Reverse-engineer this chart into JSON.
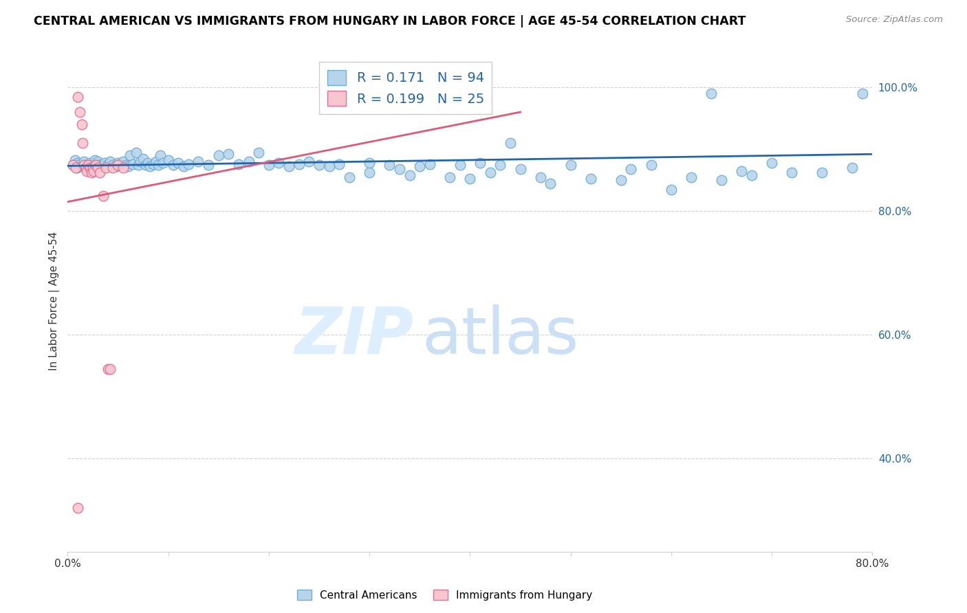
{
  "title": "CENTRAL AMERICAN VS IMMIGRANTS FROM HUNGARY IN LABOR FORCE | AGE 45-54 CORRELATION CHART",
  "source": "Source: ZipAtlas.com",
  "ylabel": "In Labor Force | Age 45-54",
  "xlim": [
    0.0,
    0.8
  ],
  "ylim": [
    0.25,
    1.06
  ],
  "xticks": [
    0.0,
    0.1,
    0.2,
    0.3,
    0.4,
    0.5,
    0.6,
    0.7,
    0.8
  ],
  "xticklabels": [
    "0.0%",
    "",
    "",
    "",
    "",
    "",
    "",
    "",
    "80.0%"
  ],
  "yticks_right": [
    0.4,
    0.6,
    0.8,
    1.0
  ],
  "yticklabels_right": [
    "40.0%",
    "60.0%",
    "80.0%",
    "100.0%"
  ],
  "R_blue": 0.171,
  "N_blue": 94,
  "R_pink": 0.199,
  "N_pink": 25,
  "blue_scatter_color": "#b8d4ea",
  "blue_edge_color": "#6baed6",
  "pink_scatter_color": "#f9c6d0",
  "pink_edge_color": "#e07090",
  "blue_line_color": "#2166ac",
  "pink_line_color": "#e05878",
  "legend_text_color": "#2166ac",
  "grid_color": "#d0d0d0",
  "blue_x": [
    0.005,
    0.007,
    0.009,
    0.01,
    0.012,
    0.015,
    0.016,
    0.018,
    0.02,
    0.022,
    0.025,
    0.027,
    0.028,
    0.03,
    0.032,
    0.035,
    0.037,
    0.04,
    0.042,
    0.045,
    0.048,
    0.05,
    0.052,
    0.055,
    0.058,
    0.06,
    0.062,
    0.065,
    0.068,
    0.07,
    0.072,
    0.075,
    0.078,
    0.08,
    0.082,
    0.085,
    0.088,
    0.09,
    0.092,
    0.095,
    0.1,
    0.105,
    0.11,
    0.115,
    0.12,
    0.13,
    0.14,
    0.15,
    0.16,
    0.17,
    0.18,
    0.19,
    0.2,
    0.21,
    0.22,
    0.23,
    0.24,
    0.25,
    0.26,
    0.27,
    0.28,
    0.3,
    0.3,
    0.32,
    0.33,
    0.34,
    0.35,
    0.36,
    0.38,
    0.39,
    0.4,
    0.41,
    0.42,
    0.43,
    0.45,
    0.47,
    0.48,
    0.5,
    0.52,
    0.55,
    0.56,
    0.58,
    0.6,
    0.62,
    0.65,
    0.68,
    0.7,
    0.72,
    0.75,
    0.78,
    0.79,
    0.64,
    0.67,
    0.44
  ],
  "blue_y": [
    0.875,
    0.882,
    0.87,
    0.878,
    0.876,
    0.872,
    0.88,
    0.875,
    0.871,
    0.878,
    0.875,
    0.882,
    0.876,
    0.88,
    0.875,
    0.872,
    0.878,
    0.876,
    0.88,
    0.875,
    0.872,
    0.878,
    0.876,
    0.88,
    0.875,
    0.872,
    0.89,
    0.876,
    0.895,
    0.875,
    0.88,
    0.885,
    0.875,
    0.878,
    0.872,
    0.876,
    0.88,
    0.875,
    0.89,
    0.878,
    0.882,
    0.875,
    0.878,
    0.872,
    0.876,
    0.88,
    0.875,
    0.89,
    0.892,
    0.876,
    0.88,
    0.895,
    0.875,
    0.878,
    0.872,
    0.876,
    0.88,
    0.875,
    0.872,
    0.876,
    0.855,
    0.878,
    0.862,
    0.875,
    0.868,
    0.858,
    0.872,
    0.876,
    0.855,
    0.875,
    0.852,
    0.878,
    0.862,
    0.875,
    0.868,
    0.855,
    0.845,
    0.875,
    0.852,
    0.85,
    0.868,
    0.875,
    0.835,
    0.855,
    0.85,
    0.858,
    0.878,
    0.862,
    0.862,
    0.87,
    0.99,
    0.99,
    0.865,
    0.91
  ],
  "pink_x": [
    0.005,
    0.008,
    0.01,
    0.012,
    0.014,
    0.015,
    0.016,
    0.018,
    0.019,
    0.02,
    0.022,
    0.024,
    0.025,
    0.026,
    0.028,
    0.03,
    0.032,
    0.035,
    0.038,
    0.04,
    0.042,
    0.045,
    0.05,
    0.055,
    0.01
  ],
  "pink_y": [
    0.875,
    0.87,
    0.985,
    0.96,
    0.94,
    0.91,
    0.875,
    0.87,
    0.865,
    0.875,
    0.87,
    0.862,
    0.87,
    0.865,
    0.875,
    0.87,
    0.862,
    0.825,
    0.87,
    0.545,
    0.545,
    0.87,
    0.875,
    0.87,
    0.32
  ]
}
